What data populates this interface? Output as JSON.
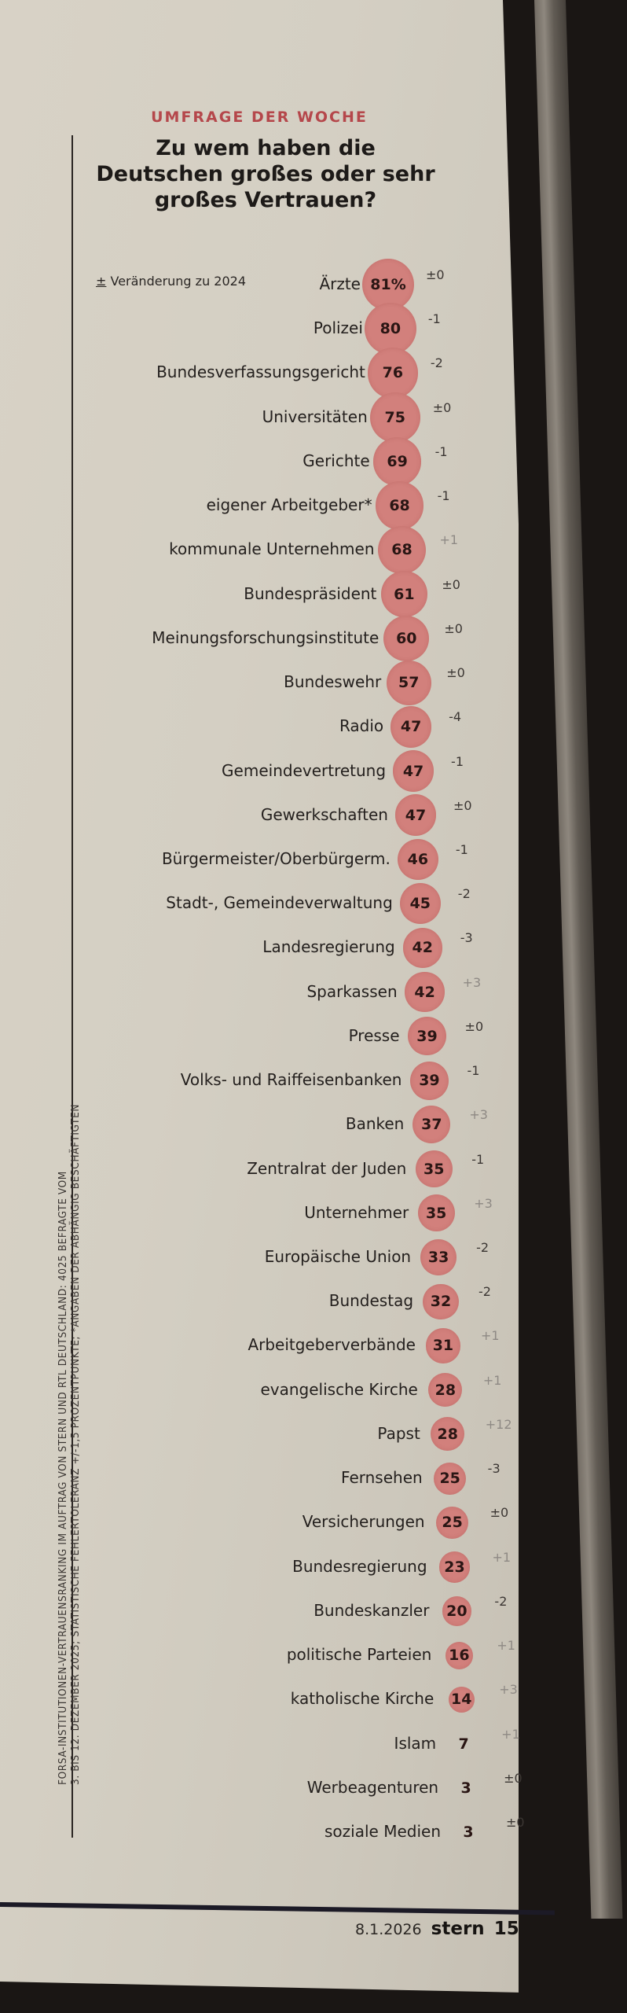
{
  "header": {
    "kicker": "UMFRAGE DER WOCHE",
    "title": "Zu wem haben die Deutschen großes oder sehr großes Vertrauen?",
    "legend_symbol": "±",
    "legend_text": "Veränderung zu 2024"
  },
  "source": {
    "line1": "FORSA-INSTITUTIONEN-VERTRAUENSRANKING IM AUFTRAG VON STERN UND RTL DEUTSCHLAND: 4025 BEFRAGTE VOM",
    "line2": "3. BIS 12. DEZEMBER 2025; STATISTISCHE FEHLERTOLERANZ +/-1,5 PROZENTPUNKTE; *ANGABEN DER ABHÄNGIG BESCHÄFTIGTEN"
  },
  "footer": {
    "date": "8.1.2026",
    "brand": "stern",
    "page": "15"
  },
  "colors": {
    "accent": "#b5474b",
    "bubble": "#d2807c"
  },
  "chart_data": {
    "type": "bubble-ranking",
    "title": "Zu wem haben die Deutschen großes oder sehr großes Vertrauen?",
    "unit": "%",
    "change_label": "± Veränderung zu 2024",
    "categories": [
      "Ärzte",
      "Polizei",
      "Bundesverfassungsgericht",
      "Universitäten",
      "Gerichte",
      "eigener Arbeitgeber*",
      "kommunale Unternehmen",
      "Bundespräsident",
      "Meinungsforschungsinstitute",
      "Bundeswehr",
      "Radio",
      "Gemeindevertretung",
      "Gewerkschaften",
      "Bürgermeister/Oberbürgerm.",
      "Stadt-, Gemeindeverwaltung",
      "Landesregierung",
      "Sparkassen",
      "Presse",
      "Volks- und Raiffeisenbanken",
      "Banken",
      "Zentralrat der Juden",
      "Unternehmer",
      "Europäische Union",
      "Bundestag",
      "Arbeitgeberverbände",
      "evangelische Kirche",
      "Papst",
      "Fernsehen",
      "Versicherungen",
      "Bundesregierung",
      "Bundeskanzler",
      "politische Parteien",
      "katholische Kirche",
      "Islam",
      "Werbeagenturen",
      "soziale Medien"
    ],
    "values": [
      81,
      80,
      76,
      75,
      69,
      68,
      68,
      61,
      60,
      57,
      47,
      47,
      47,
      46,
      45,
      42,
      42,
      39,
      39,
      37,
      35,
      35,
      33,
      32,
      31,
      28,
      28,
      25,
      25,
      23,
      20,
      16,
      14,
      7,
      3,
      3
    ],
    "value_labels": [
      "81%",
      "80",
      "76",
      "75",
      "69",
      "68",
      "68",
      "61",
      "60",
      "57",
      "47",
      "47",
      "47",
      "46",
      "45",
      "42",
      "42",
      "39",
      "39",
      "37",
      "35",
      "35",
      "33",
      "32",
      "31",
      "28",
      "28",
      "25",
      "25",
      "23",
      "20",
      "16",
      "14",
      "7",
      "3",
      "3"
    ],
    "changes": [
      "±0",
      "-1",
      "-2",
      "±0",
      "-1",
      "-1",
      "+1",
      "±0",
      "±0",
      "±0",
      "-4",
      "-1",
      "±0",
      "-1",
      "-2",
      "-3",
      "+3",
      "±0",
      "-1",
      "+3",
      "-1",
      "+3",
      "-2",
      "-2",
      "+1",
      "+1",
      "+12",
      "-3",
      "±0",
      "+1",
      "-2",
      "+1",
      "+3",
      "+1",
      "±0",
      "±0"
    ]
  }
}
